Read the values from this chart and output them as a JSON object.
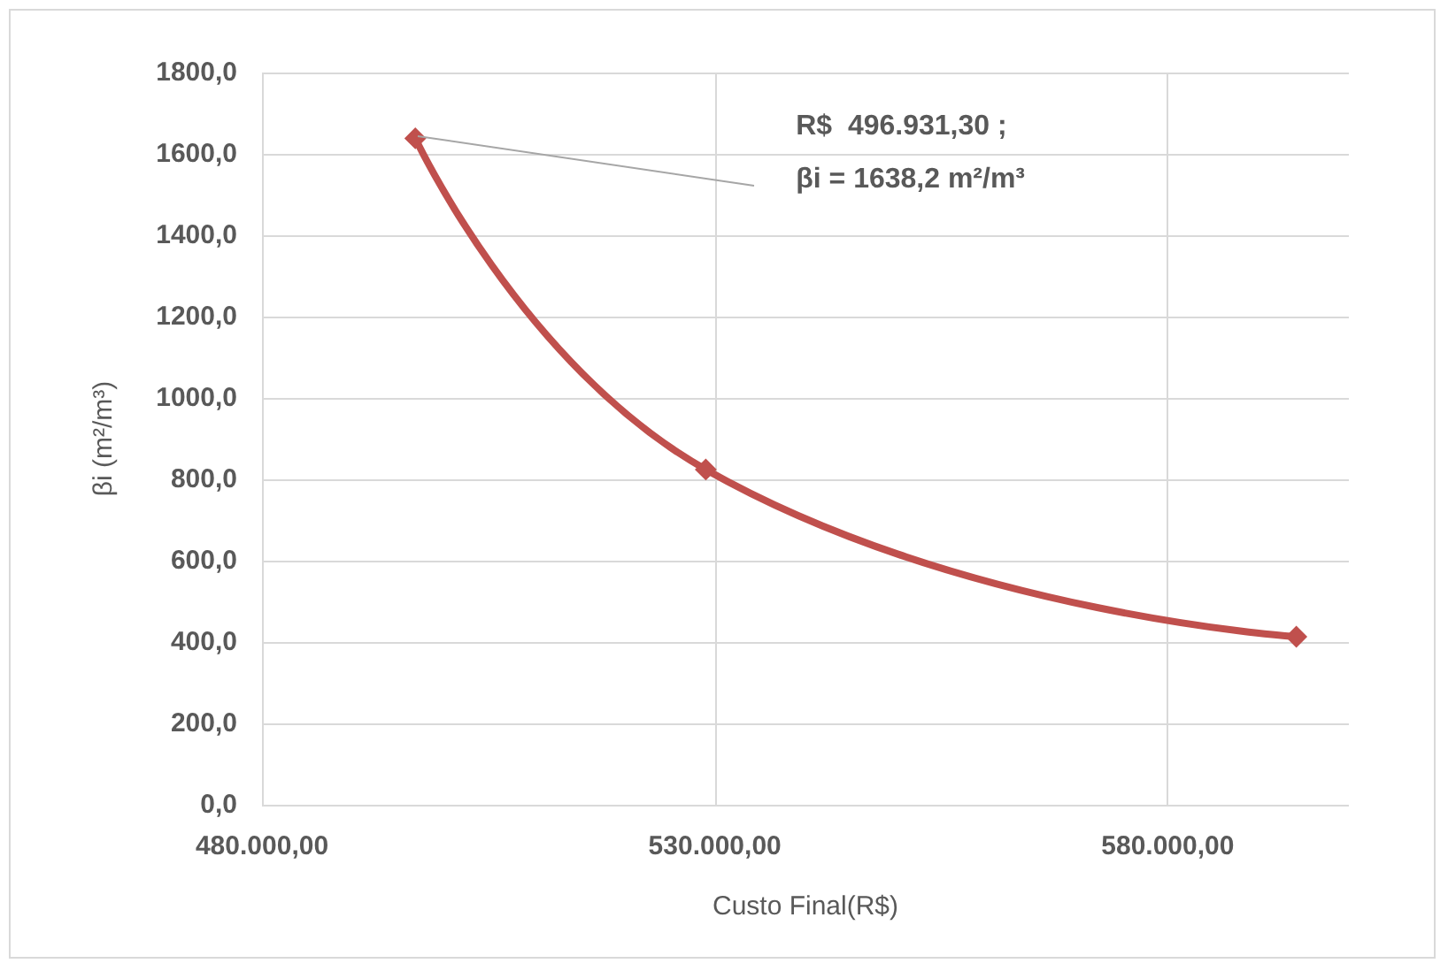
{
  "chart_data": {
    "type": "line",
    "xlabel": "Custo Final(R$)",
    "ylabel": "βi (m²/m³)",
    "x": [
      496931.3,
      529000,
      594200
    ],
    "series": [
      {
        "color": "#c0504d",
        "values": [
          1638.2,
          824,
          413
        ]
      }
    ],
    "xlim": [
      480000,
      600000
    ],
    "xticks": [
      {
        "value": 480000,
        "label": "480.000,00"
      },
      {
        "value": 530000,
        "label": "530.000,00"
      },
      {
        "value": 580000,
        "label": "580.000,00"
      }
    ],
    "ylim": [
      0,
      1800
    ],
    "yticks": [
      {
        "value": 0,
        "label": "0,0"
      },
      {
        "value": 200,
        "label": "200,0"
      },
      {
        "value": 400,
        "label": "400,0"
      },
      {
        "value": 600,
        "label": "600,0"
      },
      {
        "value": 800,
        "label": "800,0"
      },
      {
        "value": 1000,
        "label": "1000,0"
      },
      {
        "value": 1200,
        "label": "1200,0"
      },
      {
        "value": 1400,
        "label": "1400,0"
      },
      {
        "value": 1600,
        "label": "1600,0"
      },
      {
        "value": 1800,
        "label": "1800,0"
      }
    ],
    "annotations": [
      "R$  496.931,30 ;\nβi = 1638,2 m²/m³"
    ],
    "grid": true,
    "marker": "diamond",
    "line_style": "solid"
  }
}
